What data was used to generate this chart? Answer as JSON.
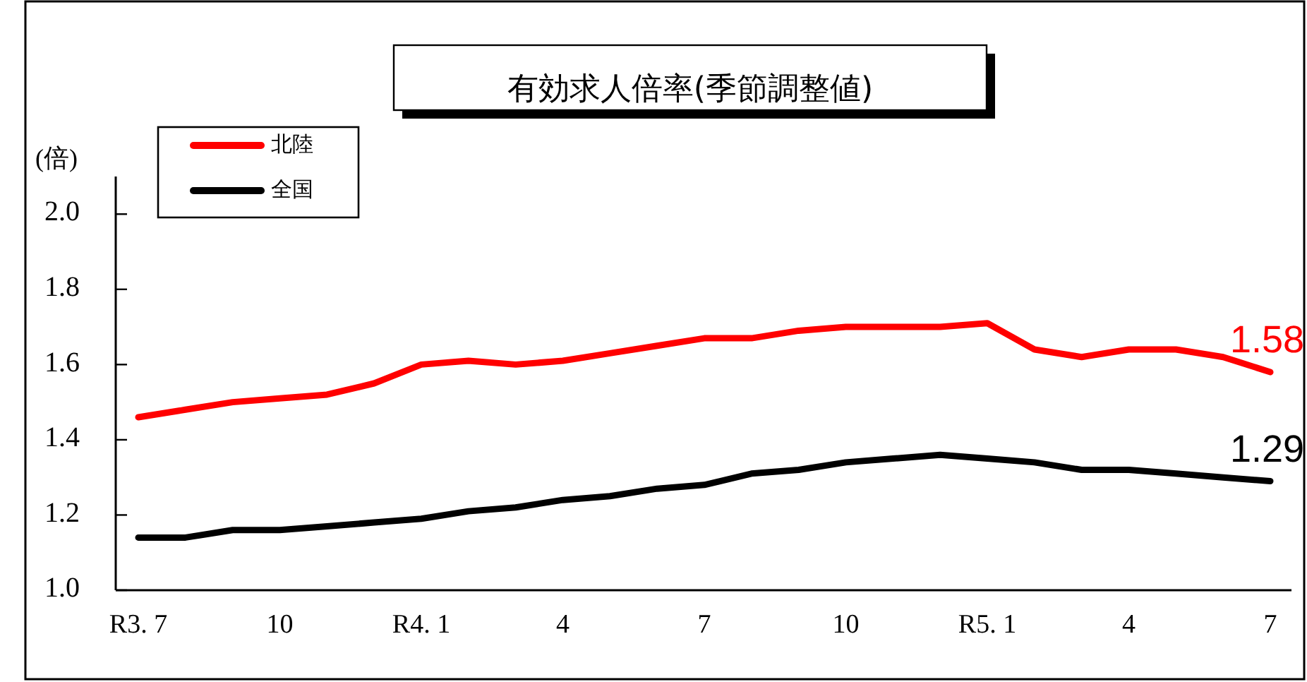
{
  "chart_data": {
    "type": "line",
    "title": "有効求人倍率(季節調整値)",
    "ylabel": "(倍)",
    "categories": [
      "R3. 7",
      null,
      null,
      "10",
      null,
      null,
      "R4. 1",
      null,
      null,
      "4",
      null,
      null,
      "7",
      null,
      null,
      "10",
      null,
      null,
      "R5. 1",
      null,
      null,
      "4",
      null,
      null,
      "7"
    ],
    "series": [
      {
        "name": "北陸",
        "color": "#ff0000",
        "values": [
          1.46,
          1.48,
          1.5,
          1.51,
          1.52,
          1.55,
          1.6,
          1.61,
          1.6,
          1.61,
          1.63,
          1.65,
          1.67,
          1.67,
          1.69,
          1.7,
          1.7,
          1.7,
          1.71,
          1.64,
          1.62,
          1.64,
          1.64,
          1.62,
          1.58
        ],
        "value_labels": [
          null,
          null,
          null,
          null,
          null,
          null,
          null,
          null,
          null,
          null,
          null,
          null,
          null,
          null,
          null,
          null,
          null,
          null,
          null,
          null,
          null,
          null,
          null,
          null,
          "1.58"
        ]
      },
      {
        "name": "全国",
        "color": "#000000",
        "values": [
          1.14,
          1.14,
          1.16,
          1.16,
          1.17,
          1.18,
          1.19,
          1.21,
          1.22,
          1.24,
          1.25,
          1.27,
          1.28,
          1.31,
          1.32,
          1.34,
          1.35,
          1.36,
          1.35,
          1.34,
          1.32,
          1.32,
          1.31,
          1.3,
          1.29
        ],
        "value_labels": [
          null,
          null,
          null,
          null,
          null,
          null,
          null,
          null,
          null,
          null,
          null,
          null,
          null,
          null,
          null,
          null,
          null,
          null,
          null,
          null,
          null,
          null,
          null,
          null,
          "1.29"
        ]
      }
    ],
    "ylim": [
      1.0,
      2.1
    ],
    "yticks": [
      {
        "value": 1.0,
        "label": "1.0"
      },
      {
        "value": 1.2,
        "label": "1.2"
      },
      {
        "value": 1.4,
        "label": "1.4"
      },
      {
        "value": 1.6,
        "label": "1.6"
      },
      {
        "value": 1.8,
        "label": "1.8"
      },
      {
        "value": 2.0,
        "label": "2.0"
      }
    ],
    "grid": false,
    "legend": "top left",
    "marker": "none",
    "line_style": "solid"
  }
}
